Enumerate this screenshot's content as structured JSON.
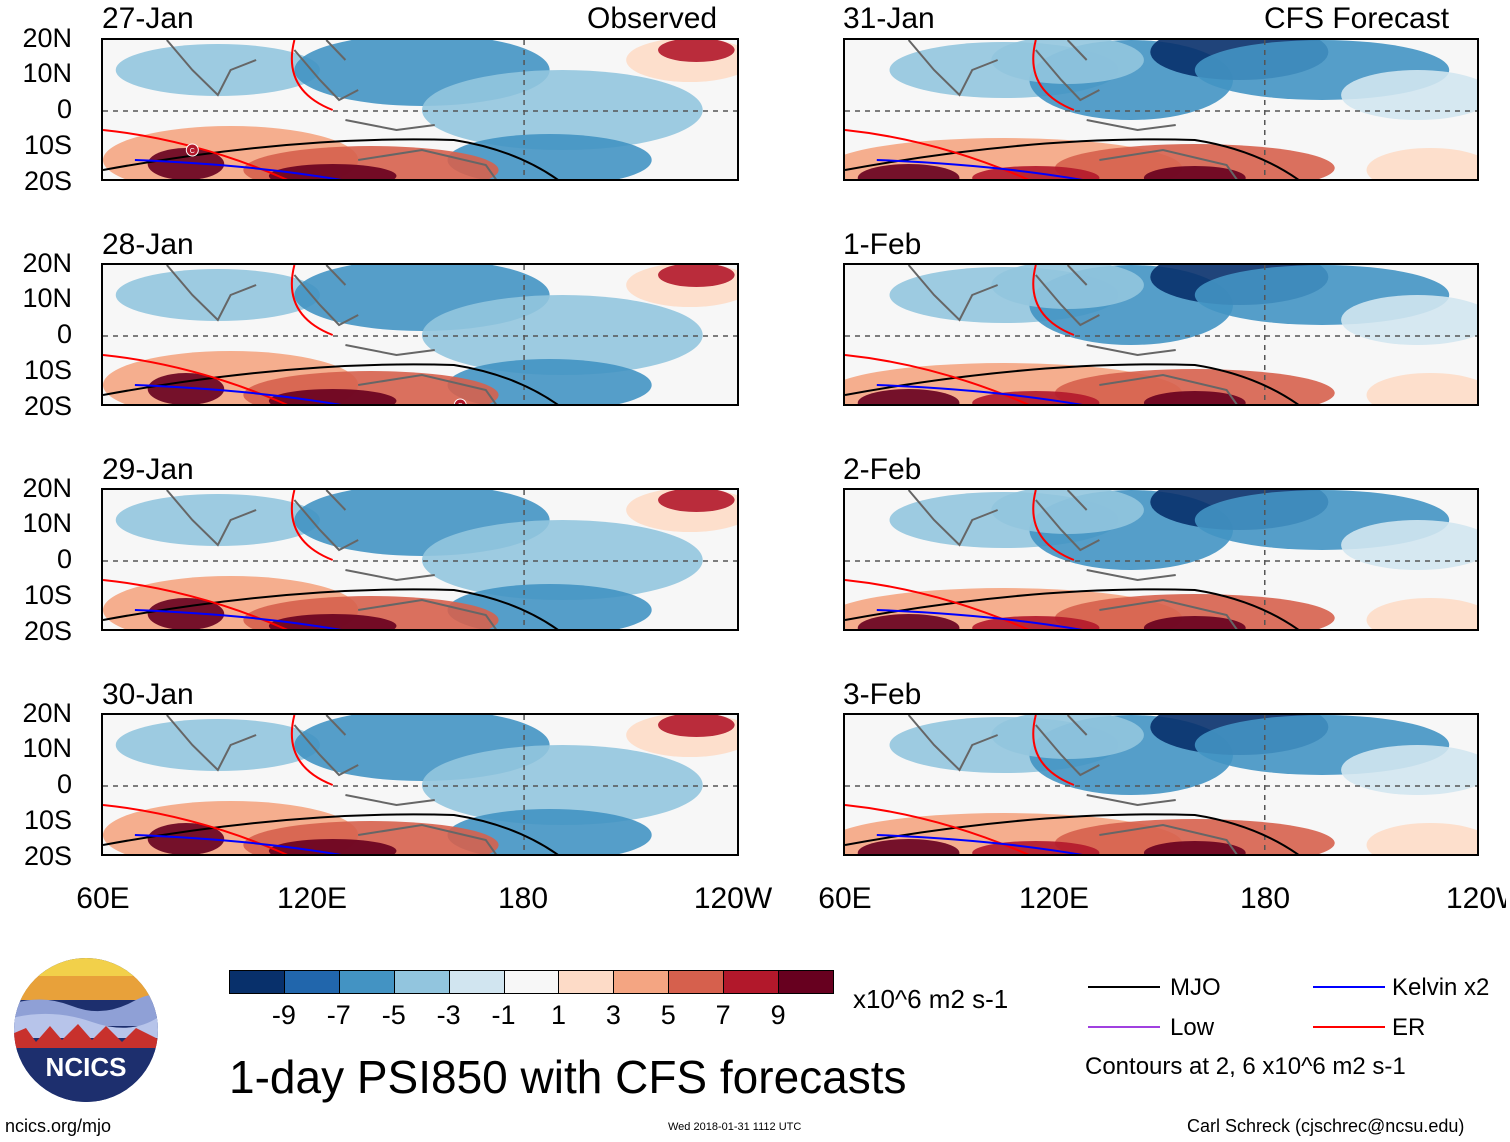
{
  "header": {
    "observed_label": "Observed",
    "forecast_label": "CFS Forecast"
  },
  "lat_labels": [
    "20N",
    "10N",
    "0",
    "10S",
    "20S"
  ],
  "lon_labels": [
    "60E",
    "120E",
    "180",
    "120W"
  ],
  "panels": {
    "observed": [
      {
        "date": "27-Jan",
        "marker": "C"
      },
      {
        "date": "28-Jan",
        "marker": "F"
      },
      {
        "date": "29-Jan",
        "marker": ""
      },
      {
        "date": "30-Jan",
        "marker": ""
      }
    ],
    "forecast": [
      {
        "date": "31-Jan"
      },
      {
        "date": "1-Feb"
      },
      {
        "date": "2-Feb"
      },
      {
        "date": "3-Feb"
      }
    ]
  },
  "colorbar": {
    "ticks": [
      "-9",
      "-7",
      "-5",
      "-3",
      "-1",
      "1",
      "3",
      "5",
      "7",
      "9"
    ],
    "colors": [
      "#08306b",
      "#2166ac",
      "#4393c3",
      "#92c5de",
      "#d1e5f0",
      "#f7f7f7",
      "#fddbc7",
      "#f4a582",
      "#d6604d",
      "#b2182b",
      "#67001f"
    ],
    "units": "x10^6 m2 s-1"
  },
  "title": "1-day PSI850 with CFS forecasts",
  "legend": {
    "items": [
      {
        "label": "MJO",
        "color": "#000000"
      },
      {
        "label": "Kelvin x2",
        "color": "#0000ff"
      },
      {
        "label": "Low",
        "color": "#a040e0"
      },
      {
        "label": "ER",
        "color": "#ff0000"
      }
    ],
    "contours_note": "Contours at 2, 6 x10^6 m2 s-1"
  },
  "logo_text": "NCICS",
  "footer": {
    "url": "ncics.org/mjo",
    "timestamp": "Wed 2018-01-31 1112 UTC",
    "author": "Carl Schreck (cjschrec@ncsu.edu)"
  }
}
